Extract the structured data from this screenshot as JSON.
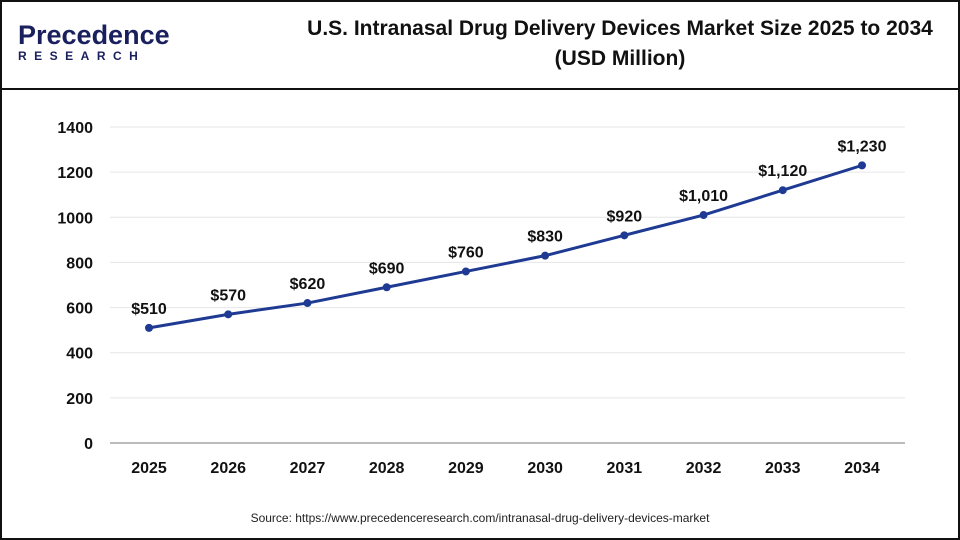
{
  "logo": {
    "text_main": "Precedence",
    "text_sub": "RESEARCH"
  },
  "title_line1": "U.S. Intranasal Drug Delivery Devices Market Size 2025 to 2034",
  "title_line2": "(USD Million)",
  "source": "Source: https://www.precedenceresearch.com/intranasal-drug-delivery-devices-market",
  "chart_data": {
    "type": "line",
    "title": "U.S. Intranasal Drug Delivery Devices Market Size 2025 to 2034 (USD Million)",
    "categories": [
      "2025",
      "2026",
      "2027",
      "2028",
      "2029",
      "2030",
      "2031",
      "2032",
      "2033",
      "2034"
    ],
    "values": [
      510,
      570,
      620,
      690,
      760,
      830,
      920,
      1010,
      1120,
      1230
    ],
    "data_labels": [
      "$510",
      "$570",
      "$620",
      "$690",
      "$760",
      "$830",
      "$920",
      "$1,010",
      "$1,120",
      "$1,230"
    ],
    "yticks": [
      0,
      200,
      400,
      600,
      800,
      1000,
      1200,
      1400
    ],
    "ylim": [
      0,
      1400
    ],
    "grid": true,
    "line_color": "#1f3a93"
  }
}
